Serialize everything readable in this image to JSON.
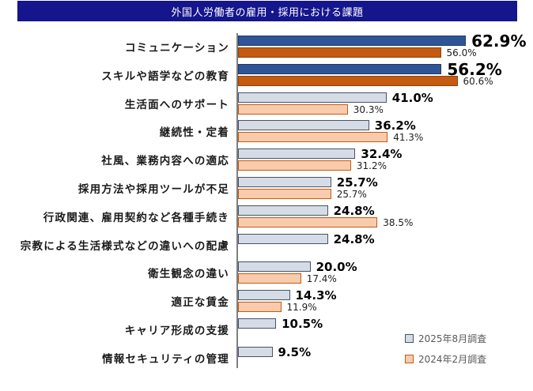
{
  "title": "外国人労働者の雇用・採用における課題",
  "colors": {
    "title_band_bg": "#15158D",
    "title_text": "#FFFFFF",
    "series_2025_fill": "#D6DCE5",
    "series_2025_border": "#44546A",
    "series_2025_emphasis_fill": "#2F5597",
    "series_2024_fill": "#F8CBAD",
    "series_2024_border": "#C55A11",
    "series_2024_emphasis_fill": "#C55A11",
    "axis_line": "#7F7F7F",
    "legend_text": "#595959"
  },
  "legend": {
    "items": [
      {
        "label": "2025年8月調査"
      },
      {
        "label": "2024年2月調査"
      }
    ],
    "position": "bottom-right"
  },
  "chart_data": {
    "type": "bar",
    "orientation": "horizontal",
    "title": "外国人労働者の雇用・採用における課題",
    "unit": "%",
    "xlim": [
      0,
      70
    ],
    "grid": false,
    "legend_position": "bottom-right",
    "emphasized_rows": [
      0,
      1
    ],
    "categories": [
      "コミュニケーション",
      "スキルや語学などの教育",
      "生活面へのサポート",
      "継続性・定着",
      "社風、業務内容への適応",
      "採用方法や採用ツールが不足",
      "行政関連、雇用契約など各種手続き",
      "宗教による生活様式などの違いへの配慮",
      "衛生観念の違い",
      "適正な賃金",
      "キャリア形成の支援",
      "情報セキュリティの管理"
    ],
    "series": [
      {
        "name": "2025年8月調査",
        "values": [
          62.9,
          56.2,
          41.0,
          36.2,
          32.4,
          25.7,
          24.8,
          24.8,
          20.0,
          14.3,
          10.5,
          9.5
        ],
        "labels": [
          "62.9%",
          "56.2%",
          "41.0%",
          "36.2%",
          "32.4%",
          "25.7%",
          "24.8%",
          "24.8%",
          "20.0%",
          "14.3%",
          "10.5%",
          "9.5%"
        ]
      },
      {
        "name": "2024年2月調査",
        "values": [
          56.0,
          60.6,
          30.3,
          41.3,
          31.2,
          25.7,
          38.5,
          null,
          17.4,
          11.9,
          null,
          null
        ],
        "labels": [
          "56.0%",
          "60.6%",
          "30.3%",
          "41.3%",
          "31.2%",
          "25.7%",
          "38.5%",
          null,
          "17.4%",
          "11.9%",
          null,
          null
        ]
      }
    ]
  }
}
